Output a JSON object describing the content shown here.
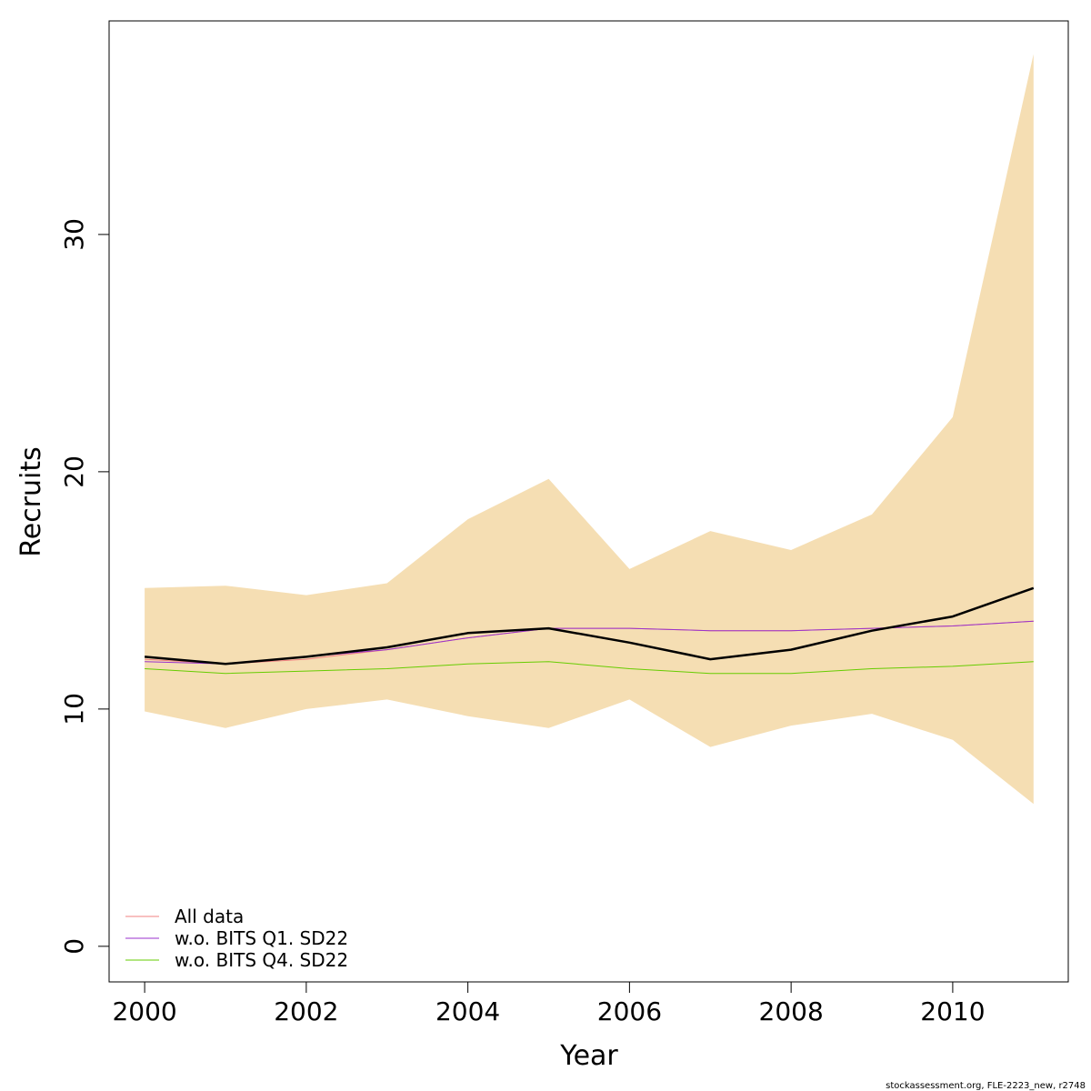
{
  "chart_data": {
    "type": "line",
    "xlabel": "Year",
    "ylabel": "Recruits",
    "xlim": [
      1999.56,
      2011.43
    ],
    "ylim": [
      -1.5,
      39.0
    ],
    "x_ticks": [
      2000,
      2002,
      2004,
      2006,
      2008,
      2010
    ],
    "x_tick_labels": [
      "2000",
      "2002",
      "2004",
      "2006",
      "2008",
      "2010"
    ],
    "y_ticks": [
      0,
      10,
      20,
      30
    ],
    "y_tick_labels": [
      "0",
      "10",
      "20",
      "30"
    ],
    "grid": false,
    "legend_position": "bottom-left",
    "x": [
      2000,
      2001,
      2002,
      2003,
      2004,
      2005,
      2006,
      2007,
      2008,
      2009,
      2010,
      2011
    ],
    "band": {
      "color": "#F5DEB3",
      "lower": [
        9.9,
        9.2,
        10.0,
        10.4,
        9.7,
        9.2,
        10.4,
        8.4,
        9.3,
        9.8,
        8.7,
        6.0
      ],
      "upper": [
        15.1,
        15.2,
        14.8,
        15.3,
        18.0,
        19.7,
        15.9,
        17.5,
        16.7,
        18.2,
        22.3,
        37.6
      ]
    },
    "main_line": {
      "color": "#000000",
      "values": [
        12.2,
        11.9,
        12.2,
        12.6,
        13.2,
        13.4,
        12.8,
        12.1,
        12.5,
        13.3,
        13.9,
        15.1
      ]
    },
    "series": [
      {
        "name": "All data",
        "color": "#F08080",
        "values": [
          12.1,
          11.9,
          12.1,
          12.5,
          13.0,
          13.4,
          13.4,
          13.3,
          13.3,
          13.4,
          13.5,
          13.7
        ]
      },
      {
        "name": "w.o. BITS Q1. SD22",
        "color": "#9932CC",
        "values": [
          12.0,
          11.9,
          12.2,
          12.5,
          13.0,
          13.4,
          13.4,
          13.3,
          13.3,
          13.4,
          13.5,
          13.7
        ]
      },
      {
        "name": "w.o. BITS Q4. SD22",
        "color": "#66CC00",
        "values": [
          11.7,
          11.5,
          11.6,
          11.7,
          11.9,
          12.0,
          11.7,
          11.5,
          11.5,
          11.7,
          11.8,
          12.0
        ]
      }
    ],
    "footer": "stockassessment.org, FLE-2223_new, r2748"
  }
}
